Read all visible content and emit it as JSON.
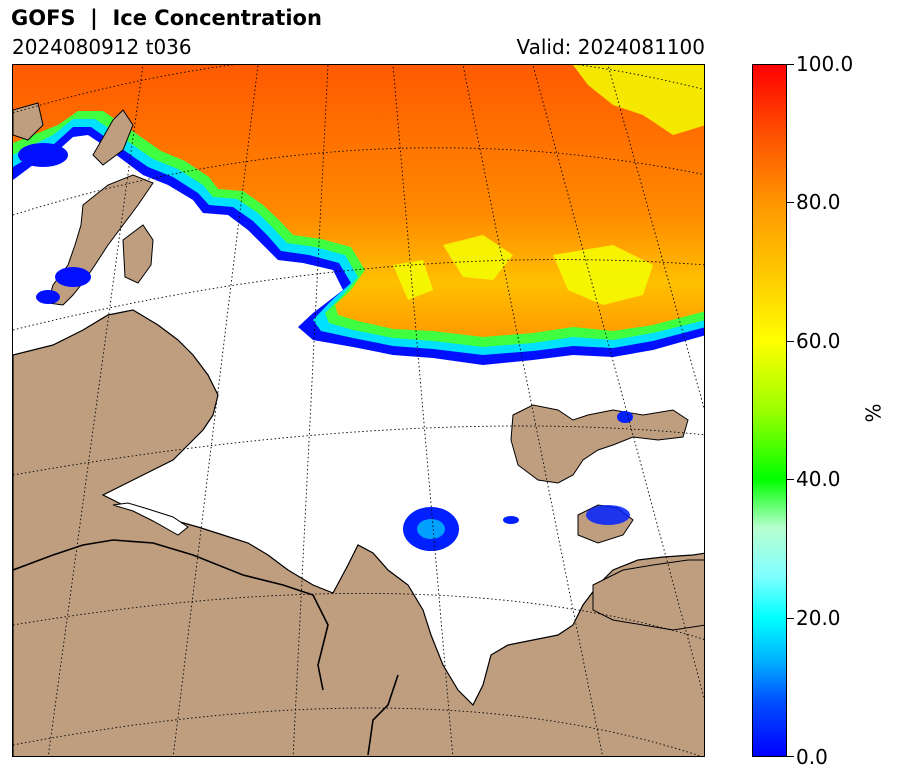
{
  "header": {
    "title": "GOFS  |  Ice Concentration",
    "run": "2024080912 t036",
    "valid": "Valid: 2024081100"
  },
  "colorbar": {
    "unit": "%",
    "ticks": [
      "0.0",
      "20.0",
      "40.0",
      "60.0",
      "80.0",
      "100.0"
    ],
    "min": 0,
    "max": 100
  },
  "colors": {
    "land": "#bf9e80",
    "ocean_open": "#ffffff",
    "ice_high": "#ff6a00",
    "ice_mid": "#ffff00",
    "ice_low": "#0000ff"
  }
}
